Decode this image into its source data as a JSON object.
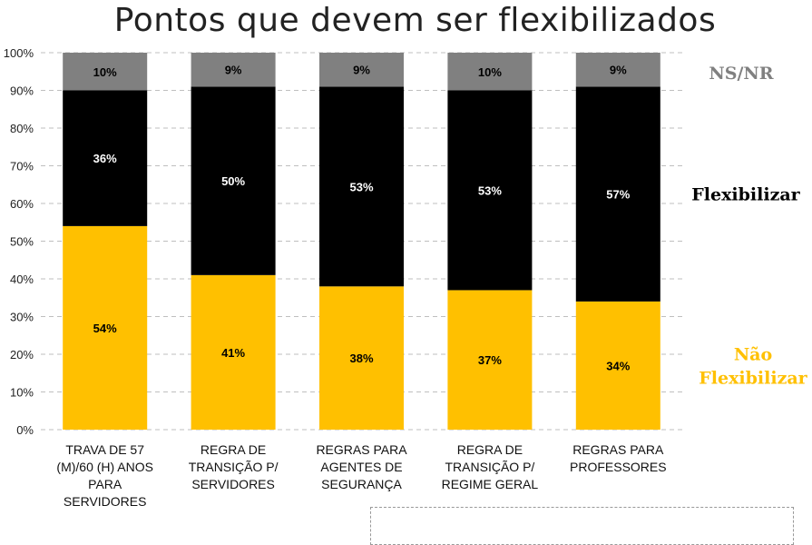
{
  "chart_data": {
    "type": "bar",
    "stacked": true,
    "title": "Pontos que devem ser flexibilizados",
    "categories": [
      [
        "TRAVA DE 57",
        "(M)/60 (H) ANOS",
        "PARA",
        "SERVIDORES"
      ],
      [
        "REGRA DE",
        "TRANSIÇÃO P/",
        "SERVIDORES"
      ],
      [
        "REGRAS PARA",
        "AGENTES DE",
        "SEGURANÇA"
      ],
      [
        "REGRA DE",
        "TRANSIÇÃO P/",
        "REGIME GERAL"
      ],
      [
        "REGRAS PARA",
        "PROFESSORES"
      ]
    ],
    "series": [
      {
        "name": "Não Flexibilizar",
        "legend_lines": [
          "Não",
          "Flexibilizar"
        ],
        "color": "#FFC000",
        "label_color": "#000000",
        "values": [
          54,
          41,
          38,
          37,
          34
        ]
      },
      {
        "name": "Flexibilizar",
        "legend_lines": [
          "Flexibilizar"
        ],
        "color": "#000000",
        "label_color": "#ffffff",
        "values": [
          36,
          50,
          53,
          53,
          57
        ]
      },
      {
        "name": "NS/NR",
        "legend_lines": [
          "NS/NR"
        ],
        "color": "#808080",
        "label_color": "#000000",
        "values": [
          10,
          9,
          9,
          10,
          9
        ]
      }
    ],
    "value_suffix": "%",
    "yticks": [
      "0%",
      "10%",
      "20%",
      "30%",
      "40%",
      "50%",
      "60%",
      "70%",
      "80%",
      "90%",
      "100%"
    ],
    "ylim": [
      0,
      100
    ],
    "grid": "horizontal-dashed",
    "legend_position": "right"
  }
}
